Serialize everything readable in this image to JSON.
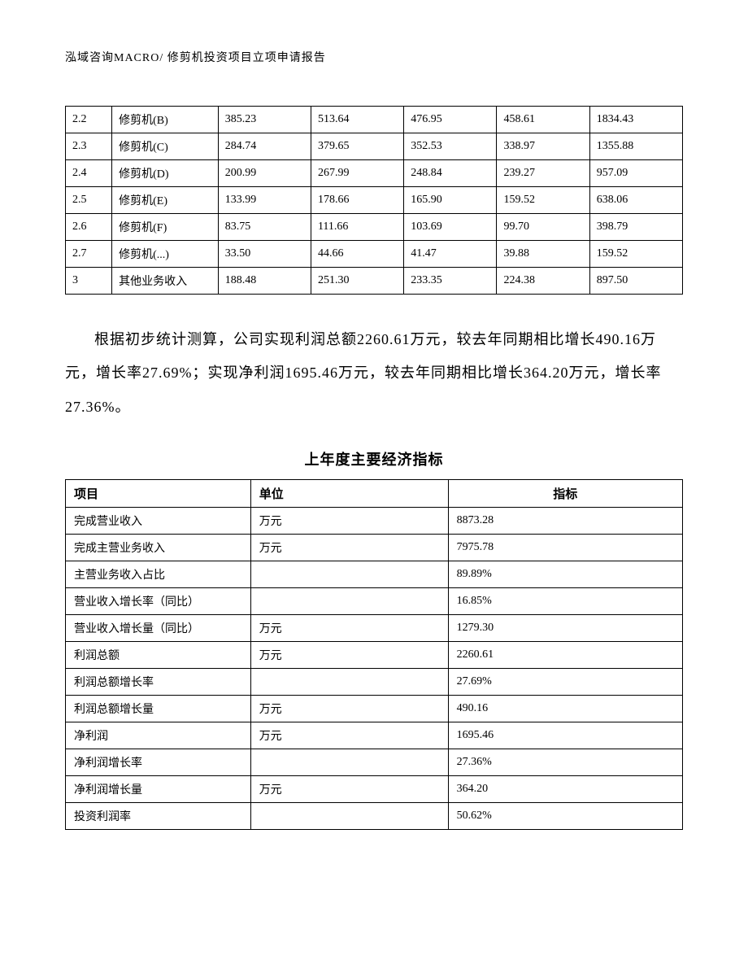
{
  "header": {
    "text": "泓域咨询MACRO/    修剪机投资项目立项申请报告"
  },
  "table1": {
    "rows": [
      [
        "2.2",
        "修剪机(B)",
        "385.23",
        "513.64",
        "476.95",
        "458.61",
        "1834.43"
      ],
      [
        "2.3",
        "修剪机(C)",
        "284.74",
        "379.65",
        "352.53",
        "338.97",
        "1355.88"
      ],
      [
        "2.4",
        "修剪机(D)",
        "200.99",
        "267.99",
        "248.84",
        "239.27",
        "957.09"
      ],
      [
        "2.5",
        "修剪机(E)",
        "133.99",
        "178.66",
        "165.90",
        "159.52",
        "638.06"
      ],
      [
        "2.6",
        "修剪机(F)",
        "83.75",
        "111.66",
        "103.69",
        "99.70",
        "398.79"
      ],
      [
        "2.7",
        "修剪机(...)",
        "33.50",
        "44.66",
        "41.47",
        "39.88",
        "159.52"
      ],
      [
        "3",
        "其他业务收入",
        "188.48",
        "251.30",
        "233.35",
        "224.38",
        "897.50"
      ]
    ],
    "col_widths": [
      "7%",
      "16%",
      "14%",
      "14%",
      "14%",
      "14%",
      "14%"
    ],
    "border_color": "#000000",
    "font_size": 14
  },
  "paragraph": {
    "text": "根据初步统计测算，公司实现利润总额2260.61万元，较去年同期相比增长490.16万元，增长率27.69%；实现净利润1695.46万元，较去年同期相比增长364.20万元，增长率27.36%。",
    "font_size": 18,
    "line_height": 2.3
  },
  "section_title": {
    "text": "上年度主要经济指标",
    "font_size": 18,
    "font_weight": "bold"
  },
  "table2": {
    "headers": [
      "项目",
      "单位",
      "指标"
    ],
    "rows": [
      [
        "完成营业收入",
        "万元",
        "8873.28"
      ],
      [
        "完成主营业务收入",
        "万元",
        "7975.78"
      ],
      [
        "主营业务收入占比",
        "",
        "89.89%"
      ],
      [
        "营业收入增长率（同比）",
        "",
        "16.85%"
      ],
      [
        "营业收入增长量（同比）",
        "万元",
        "1279.30"
      ],
      [
        "利润总额",
        "万元",
        "2260.61"
      ],
      [
        "利润总额增长率",
        "",
        "27.69%"
      ],
      [
        "利润总额增长量",
        "万元",
        "490.16"
      ],
      [
        "净利润",
        "万元",
        "1695.46"
      ],
      [
        "净利润增长率",
        "",
        "27.36%"
      ],
      [
        "净利润增长量",
        "万元",
        "364.20"
      ],
      [
        "投资利润率",
        "",
        "50.62%"
      ]
    ],
    "col_widths": [
      "30%",
      "32%",
      "38%"
    ],
    "border_color": "#000000",
    "header_font_size": 15,
    "cell_font_size": 14
  },
  "colors": {
    "background": "#ffffff",
    "text": "#000000",
    "border": "#000000"
  }
}
